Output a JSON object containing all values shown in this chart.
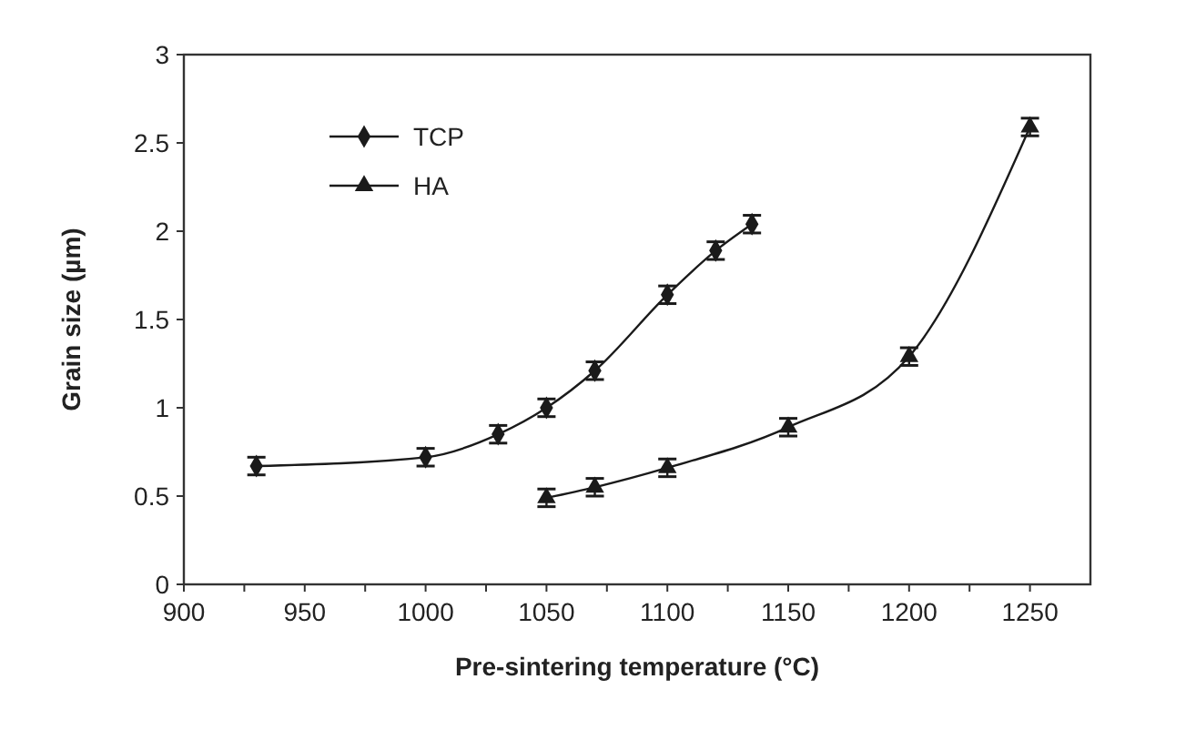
{
  "chart_data": {
    "type": "line",
    "xlabel": "Pre-sintering temperature (°C)",
    "ylabel": "Grain size (µm)",
    "xlim": [
      900,
      1275
    ],
    "ylim": [
      0,
      3
    ],
    "xticks": [
      900,
      {
        "value": 925,
        "label": null
      },
      950,
      {
        "value": 975,
        "label": null
      },
      1000,
      {
        "value": 1025,
        "label": null
      },
      1050,
      {
        "value": 1075,
        "label": null
      },
      1100,
      {
        "value": 1125,
        "label": null
      },
      1150,
      {
        "value": 1175,
        "label": null
      },
      1200,
      {
        "value": 1225,
        "label": null
      },
      1250
    ],
    "yticks": [
      0,
      0.5,
      1,
      1.5,
      2,
      2.5,
      3
    ],
    "grid": false,
    "legend": "top left",
    "series": [
      {
        "name": "TCP",
        "color": "#1a1a1a",
        "marker": "diamond",
        "x": [
          930,
          1000,
          1030,
          1050,
          1070,
          1100,
          1120,
          1135
        ],
        "values": [
          0.67,
          0.72,
          0.85,
          1.0,
          1.21,
          1.64,
          1.89,
          2.04
        ],
        "errors": [
          0.05,
          0.05,
          0.05,
          0.05,
          0.05,
          0.05,
          0.05,
          0.05
        ]
      },
      {
        "name": "HA",
        "color": "#1a1a1a",
        "marker": "triangle",
        "x": [
          1050,
          1070,
          1100,
          1150,
          1200,
          1250
        ],
        "values": [
          0.49,
          0.55,
          0.66,
          0.89,
          1.29,
          2.59
        ],
        "errors": [
          0.05,
          0.05,
          0.05,
          0.05,
          0.05,
          0.05
        ]
      }
    ]
  }
}
